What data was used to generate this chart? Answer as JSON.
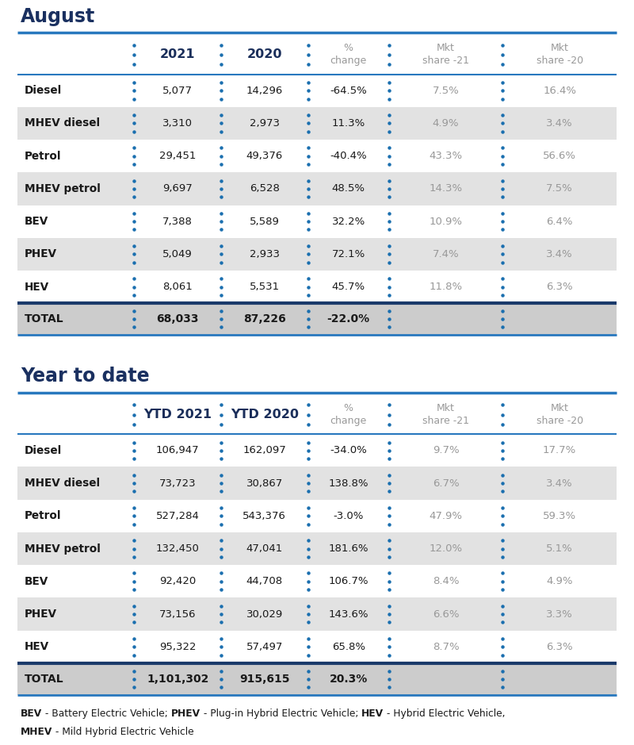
{
  "title_august": "August",
  "title_ytd": "Year to date",
  "header_cols_aug": [
    "",
    "2021",
    "2020",
    "%\nchange",
    "Mkt\nshare -21",
    "Mkt\nshare -20"
  ],
  "header_cols_ytd": [
    "",
    "YTD 2021",
    "YTD 2020",
    "%\nchange",
    "Mkt\nshare -21",
    "Mkt\nshare -20"
  ],
  "aug_rows": [
    [
      "Diesel",
      "5,077",
      "14,296",
      "-64.5%",
      "7.5%",
      "16.4%",
      false
    ],
    [
      "MHEV diesel",
      "3,310",
      "2,973",
      "11.3%",
      "4.9%",
      "3.4%",
      true
    ],
    [
      "Petrol",
      "29,451",
      "49,376",
      "-40.4%",
      "43.3%",
      "56.6%",
      false
    ],
    [
      "MHEV petrol",
      "9,697",
      "6,528",
      "48.5%",
      "14.3%",
      "7.5%",
      true
    ],
    [
      "BEV",
      "7,388",
      "5,589",
      "32.2%",
      "10.9%",
      "6.4%",
      false
    ],
    [
      "PHEV",
      "5,049",
      "2,933",
      "72.1%",
      "7.4%",
      "3.4%",
      true
    ],
    [
      "HEV",
      "8,061",
      "5,531",
      "45.7%",
      "11.8%",
      "6.3%",
      false
    ]
  ],
  "aug_total": [
    "TOTAL",
    "68,033",
    "87,226",
    "-22.0%",
    "",
    ""
  ],
  "ytd_rows": [
    [
      "Diesel",
      "106,947",
      "162,097",
      "-34.0%",
      "9.7%",
      "17.7%",
      false
    ],
    [
      "MHEV diesel",
      "73,723",
      "30,867",
      "138.8%",
      "6.7%",
      "3.4%",
      true
    ],
    [
      "Petrol",
      "527,284",
      "543,376",
      "-3.0%",
      "47.9%",
      "59.3%",
      false
    ],
    [
      "MHEV petrol",
      "132,450",
      "47,041",
      "181.6%",
      "12.0%",
      "5.1%",
      true
    ],
    [
      "BEV",
      "92,420",
      "44,708",
      "106.7%",
      "8.4%",
      "4.9%",
      false
    ],
    [
      "PHEV",
      "73,156",
      "30,029",
      "143.6%",
      "6.6%",
      "3.3%",
      true
    ],
    [
      "HEV",
      "95,322",
      "57,497",
      "65.8%",
      "8.7%",
      "6.3%",
      false
    ]
  ],
  "ytd_total": [
    "TOTAL",
    "1,101,302",
    "915,615",
    "20.3%",
    "",
    ""
  ],
  "bg_white": "#ffffff",
  "bg_gray": "#e2e2e2",
  "bg_total": "#cccccc",
  "color_header_dark": "#1a2e5a",
  "color_blue": "#1a6faf",
  "color_gray_text": "#999999",
  "color_black": "#1a1a1a",
  "title_color": "#1a3060",
  "line_color_blue": "#2878be",
  "line_color_dark": "#1a3a6a"
}
